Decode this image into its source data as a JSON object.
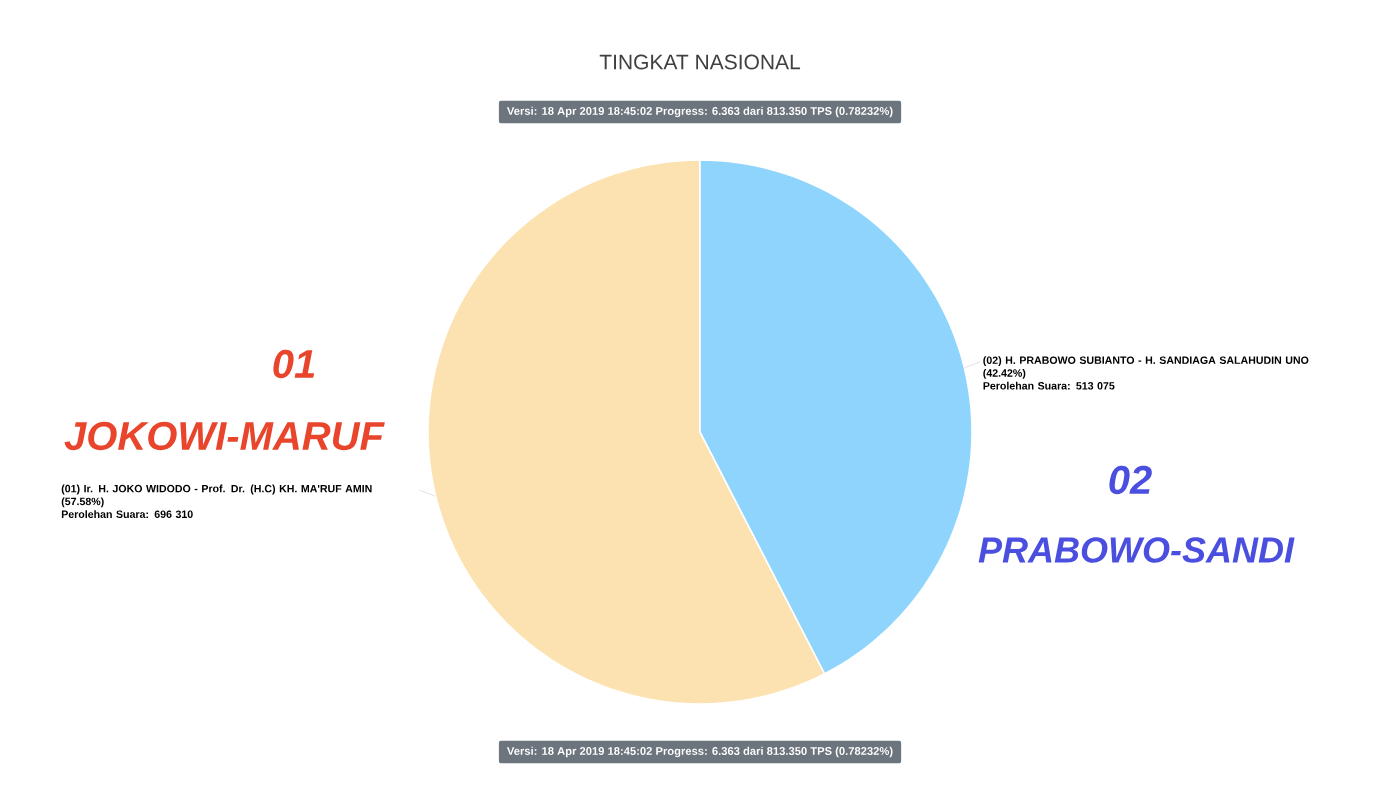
{
  "chart_data": {
    "type": "pie",
    "title": "TINGKAT NASIONAL",
    "subtitle": "Versi: 18 Apr 2019 18:45:02 Progress: 6.363 dari 813.350 TPS (0.78232%)",
    "categories": [
      "(01) Ir. H. JOKO WIDODO - Prof. Dr. (H.C) KH. MA'RUF AMIN (57.58%)",
      "(02) H. PRABOWO SUBIANTO - H. SANDIAGA SALAHUDIN UNO (42.42%)"
    ],
    "values": [
      696310,
      513075
    ],
    "value_labels": [
      "Perolehan Suara: 696 310",
      "Perolehan Suara: 513 075"
    ],
    "colors": [
      "#fde2b1",
      "#8ed4fc"
    ],
    "annotations": [
      "01",
      "JOKOWI-MARUF",
      "02",
      "PRABOWO-SANDI",
      "Versi: 18 Apr 2019 18:45:02 Progress: 6.363 dari 813.350 TPS (0.78232%)"
    ]
  }
}
